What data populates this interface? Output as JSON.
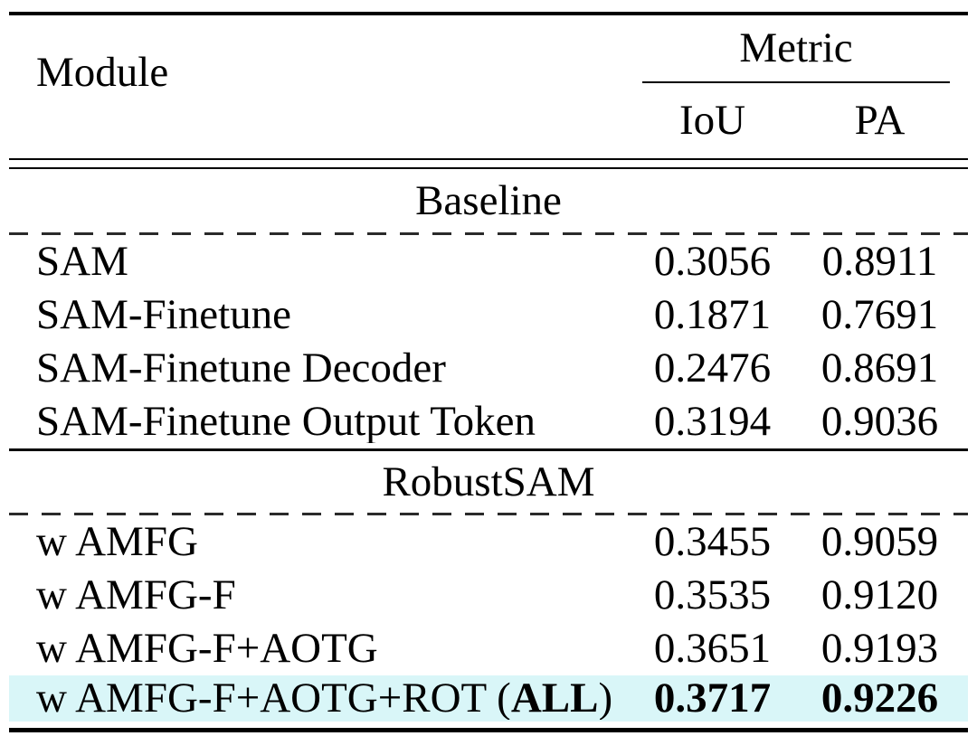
{
  "table": {
    "header": {
      "module_label": "Module",
      "metric_label": "Metric",
      "metric_columns": [
        "IoU",
        "PA"
      ]
    },
    "sections": [
      {
        "title": "Baseline",
        "rows": [
          {
            "label": "SAM",
            "label_bold": "",
            "label_suffix": "",
            "iou": "0.3056",
            "pa": "0.8911",
            "highlight": false,
            "bold": false
          },
          {
            "label": "SAM-Finetune",
            "label_bold": "",
            "label_suffix": "",
            "iou": "0.1871",
            "pa": "0.7691",
            "highlight": false,
            "bold": false
          },
          {
            "label": "SAM-Finetune Decoder",
            "label_bold": "",
            "label_suffix": "",
            "iou": "0.2476",
            "pa": "0.8691",
            "highlight": false,
            "bold": false
          },
          {
            "label": "SAM-Finetune Output Token",
            "label_bold": "",
            "label_suffix": "",
            "iou": "0.3194",
            "pa": "0.9036",
            "highlight": false,
            "bold": false
          }
        ]
      },
      {
        "title": "RobustSAM",
        "rows": [
          {
            "label": "w AMFG",
            "label_bold": "",
            "label_suffix": "",
            "iou": "0.3455",
            "pa": "0.9059",
            "highlight": false,
            "bold": false
          },
          {
            "label": "w AMFG-F",
            "label_bold": "",
            "label_suffix": "",
            "iou": "0.3535",
            "pa": "0.9120",
            "highlight": false,
            "bold": false
          },
          {
            "label": "w AMFG-F+AOTG",
            "label_bold": "",
            "label_suffix": "",
            "iou": "0.3651",
            "pa": "0.9193",
            "highlight": false,
            "bold": false
          },
          {
            "label": "w AMFG-F+AOTG+ROT (",
            "label_bold": "ALL",
            "label_suffix": ")",
            "iou": "0.3717",
            "pa": "0.9226",
            "highlight": true,
            "bold": true
          }
        ]
      }
    ],
    "colors": {
      "highlight_row": "#d9f6f8",
      "text": "#000000",
      "rule": "#000000",
      "dash": "#2a2a2a"
    }
  }
}
